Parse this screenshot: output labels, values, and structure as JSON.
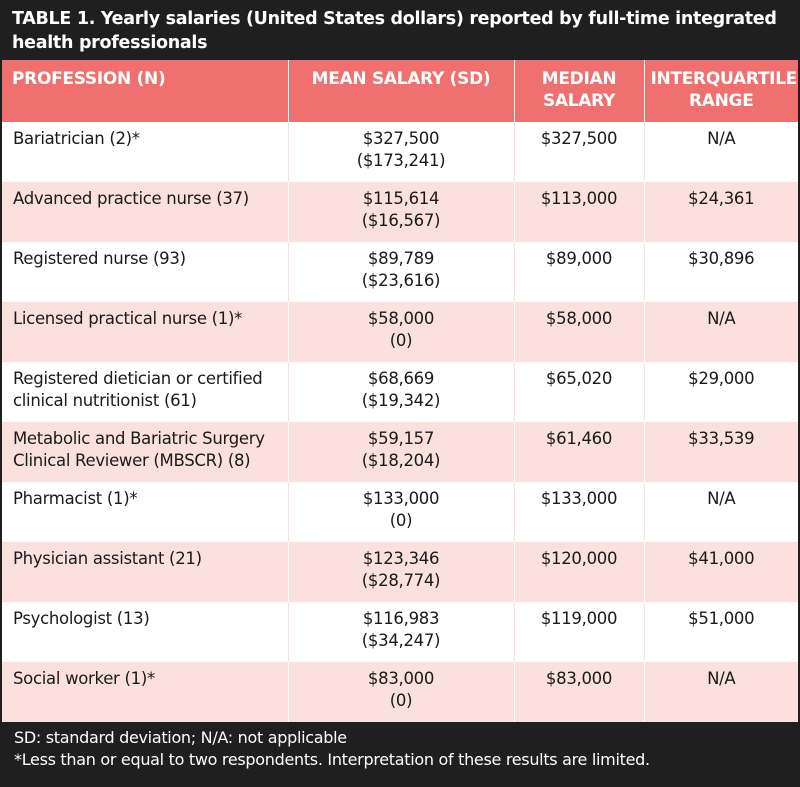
{
  "title": "TABLE 1. Yearly salaries (United States dollars) reported by full-time integrated health professionals",
  "headers": {
    "profession": "PROFESSION (N)",
    "mean": "MEAN SALARY (SD)",
    "median_line1": "MEDIAN",
    "median_line2": "SALARY",
    "iqr_line1": "INTERQUARTILE",
    "iqr_line2": "RANGE"
  },
  "rows": [
    {
      "profession": "Bariatrician (2)*",
      "mean": "$327,500",
      "sd": "($173,241)",
      "median": "$327,500",
      "iqr": "N/A"
    },
    {
      "profession": "Advanced practice nurse (37)",
      "mean": "$115,614",
      "sd": "($16,567)",
      "median": "$113,000",
      "iqr": "$24,361"
    },
    {
      "profession": "Registered nurse (93)",
      "mean": "$89,789",
      "sd": "($23,616)",
      "median": "$89,000",
      "iqr": "$30,896"
    },
    {
      "profession": "Licensed practical nurse (1)*",
      "mean": "$58,000",
      "sd": "(0)",
      "median": "$58,000",
      "iqr": "N/A"
    },
    {
      "profession": "Registered dietician or certified clinical nutritionist (61)",
      "mean": "$68,669",
      "sd": "($19,342)",
      "median": "$65,020",
      "iqr": "$29,000"
    },
    {
      "profession": "Metabolic and Bariatric Surgery Clinical Reviewer (MBSCR) (8)",
      "mean": "$59,157",
      "sd": "($18,204)",
      "median": "$61,460",
      "iqr": "$33,539"
    },
    {
      "profession": "Pharmacist (1)*",
      "mean": "$133,000",
      "sd": "(0)",
      "median": "$133,000",
      "iqr": "N/A"
    },
    {
      "profession": "Physician assistant (21)",
      "mean": "$123,346",
      "sd": "($28,774)",
      "median": "$120,000",
      "iqr": "$41,000"
    },
    {
      "profession": "Psychologist (13)",
      "mean": "$116,983",
      "sd": "($34,247)",
      "median": "$119,000",
      "iqr": "$51,000"
    },
    {
      "profession": "Social worker (1)*",
      "mean": "$83,000",
      "sd": "(0)",
      "median": "$83,000",
      "iqr": "N/A"
    }
  ],
  "footer": {
    "line1": "SD: standard deviation; N/A: not applicable",
    "line2": "*Less than or equal to two respondents. Interpretation of these results are limited."
  },
  "colors": {
    "header_bg": "#f07070",
    "band_bg": "#fbe0de",
    "frame_bg": "#1f1f1f"
  }
}
